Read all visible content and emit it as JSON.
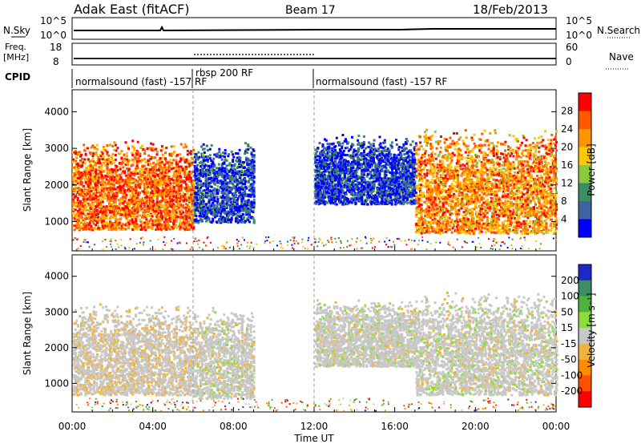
{
  "header": {
    "site": "Adak East (fitACF)",
    "beam": "Beam 17",
    "date": "18/Feb/2013"
  },
  "nsky_panel": {
    "left_label": "N.Sky",
    "left_ticks": [
      "10^5",
      "10^0"
    ],
    "right_ticks": [
      "10^5",
      "10^0"
    ],
    "right_label": "N.Search"
  },
  "freq_panel": {
    "left_label_top": "Freq.",
    "left_label_bottom": "[MHz]",
    "left_ticks": [
      "18",
      "8"
    ],
    "right_ticks": [
      "60",
      "0"
    ],
    "right_label": "Nave"
  },
  "cpid_panel": {
    "label": "CPID",
    "segments": [
      {
        "start": "00:00",
        "end": "06:00",
        "text": "normalsound (fast) -157 RF"
      },
      {
        "start": "06:00",
        "end": "12:00",
        "text": "rbsp 200 RF"
      },
      {
        "start": "12:00",
        "end": "24:00",
        "text": "normalsound (fast) -157 RF"
      }
    ]
  },
  "power_colorbar": {
    "label": "Power [dB]",
    "ticks": [
      "28",
      "24",
      "20",
      "16",
      "12",
      "8",
      "4"
    ],
    "colors": [
      "#ff0000",
      "#ff5a00",
      "#ff9600",
      "#ffc800",
      "#8cc83c",
      "#3c8c64",
      "#3c64a0",
      "#0000ff"
    ]
  },
  "velocity_colorbar": {
    "label": "Velocity [m s⁻¹]",
    "ticks": [
      "200",
      "100",
      "50",
      "15",
      "-15",
      "-50",
      "-100",
      "-200"
    ],
    "colors": [
      "#1e28c8",
      "#3c8c64",
      "#50b43c",
      "#8cdc3c",
      "#c8c8c8",
      "#f0b43c",
      "#ff8c00",
      "#ff5000",
      "#ff0000"
    ]
  },
  "chart_data": [
    {
      "type": "heatmap",
      "title": "",
      "ylabel": "Slant Range [km]",
      "xlabel": "",
      "y_ticks": [
        "1000",
        "2000",
        "3000",
        "4000"
      ],
      "ylim": [
        200,
        4600
      ],
      "xlim": [
        0,
        24
      ],
      "x_ticks": [
        "00:00",
        "04:00",
        "08:00",
        "12:00",
        "16:00",
        "20:00",
        "00:00"
      ],
      "quantity": "Power [dB]",
      "regions": [
        {
          "t_start": 0.0,
          "t_end": 6.0,
          "range_low": 800,
          "range_high": 3300,
          "level": 24
        },
        {
          "t_start": 6.0,
          "t_end": 9.0,
          "range_low": 1000,
          "range_high": 3200,
          "level": 6
        },
        {
          "t_start": 12.0,
          "t_end": 17.0,
          "range_low": 1500,
          "range_high": 3400,
          "level": 5
        },
        {
          "t_start": 17.0,
          "t_end": 24.0,
          "range_low": 700,
          "range_high": 3600,
          "level": 22
        }
      ]
    },
    {
      "type": "heatmap",
      "title": "",
      "ylabel": "Slant Range [km]",
      "xlabel": "Time UT",
      "y_ticks": [
        "1000",
        "2000",
        "3000",
        "4000"
      ],
      "ylim": [
        200,
        4600
      ],
      "xlim": [
        0,
        24
      ],
      "x_ticks": [
        "00:00",
        "04:00",
        "08:00",
        "12:00",
        "16:00",
        "20:00",
        "00:00"
      ],
      "quantity": "Velocity [m s-1]",
      "regions": [
        {
          "t_start": 0.0,
          "t_end": 6.0,
          "range_low": 700,
          "range_high": 3300,
          "level": -10
        },
        {
          "t_start": 6.0,
          "t_end": 9.0,
          "range_low": 600,
          "range_high": 3200,
          "level": 0
        },
        {
          "t_start": 12.0,
          "t_end": 17.0,
          "range_low": 1500,
          "range_high": 3400,
          "level": 0
        },
        {
          "t_start": 17.0,
          "t_end": 24.0,
          "range_low": 700,
          "range_high": 3600,
          "level": 0
        }
      ]
    }
  ]
}
